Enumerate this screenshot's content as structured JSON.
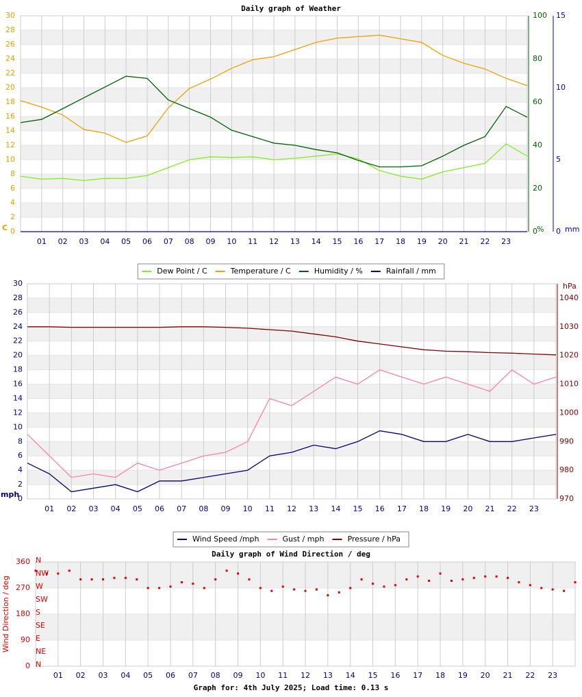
{
  "chart_data": [
    {
      "type": "line",
      "title": "Daily graph of Weather",
      "x": [
        0,
        1,
        2,
        3,
        4,
        5,
        6,
        7,
        8,
        9,
        10,
        11,
        12,
        13,
        14,
        15,
        16,
        17,
        18,
        19,
        20,
        21,
        22,
        23,
        24
      ],
      "xlim": [
        0,
        24
      ],
      "xticks": [
        {
          "value": 1,
          "label": "01"
        },
        {
          "value": 2,
          "label": "02"
        },
        {
          "value": 3,
          "label": "03"
        },
        {
          "value": 4,
          "label": "04"
        },
        {
          "value": 5,
          "label": "05"
        },
        {
          "value": 6,
          "label": "06"
        },
        {
          "value": 7,
          "label": "07"
        },
        {
          "value": 8,
          "label": "08"
        },
        {
          "value": 9,
          "label": "09"
        },
        {
          "value": 10,
          "label": "10"
        },
        {
          "value": 11,
          "label": "11"
        },
        {
          "value": 12,
          "label": "12"
        },
        {
          "value": 13,
          "label": "13"
        },
        {
          "value": 14,
          "label": "14"
        },
        {
          "value": 15,
          "label": "15"
        },
        {
          "value": 16,
          "label": "16"
        },
        {
          "value": 17,
          "label": "17"
        },
        {
          "value": 18,
          "label": "18"
        },
        {
          "value": 19,
          "label": "19"
        },
        {
          "value": 20,
          "label": "20"
        },
        {
          "value": 21,
          "label": "21"
        },
        {
          "value": 22,
          "label": "22"
        },
        {
          "value": 23,
          "label": "23"
        }
      ],
      "ylim": [
        0,
        30
      ],
      "yticks": [
        0,
        2,
        4,
        6,
        8,
        10,
        12,
        14,
        16,
        18,
        20,
        22,
        24,
        26,
        28,
        30
      ],
      "ylabel": "C",
      "ycolor": "#e8a000",
      "y2lim": [
        0,
        100
      ],
      "y2ticks": [
        0,
        20,
        40,
        60,
        80,
        100
      ],
      "y2label": "%",
      "y2color": "#006000",
      "y3lim": [
        0,
        15
      ],
      "y3ticks": [
        0,
        5,
        10,
        15
      ],
      "y3label": "mm",
      "y3color": "#0000c0",
      "grid": true,
      "series": [
        {
          "name": "Dew Point / C",
          "color": "#80ee20",
          "values": [
            7.7,
            7.3,
            7.4,
            7.1,
            7.4,
            7.4,
            7.8,
            8.9,
            10.0,
            10.4,
            10.3,
            10.4,
            10.0,
            10.2,
            10.5,
            10.8,
            10.1,
            8.5,
            7.7,
            7.3,
            8.3,
            8.9,
            9.5,
            12.2,
            10.5
          ]
        },
        {
          "name": "Temperature / C",
          "color": "#f0a000",
          "values": [
            18.2,
            17.3,
            16.2,
            14.2,
            13.7,
            12.4,
            13.3,
            17.2,
            19.9,
            21.2,
            22.7,
            23.9,
            24.3,
            25.3,
            26.3,
            26.9,
            27.1,
            27.3,
            26.8,
            26.3,
            24.5,
            23.4,
            22.6,
            21.3,
            20.3
          ]
        },
        {
          "name": "Humidity / %",
          "color": "#006000",
          "axis": "y2",
          "values": [
            50.5,
            52,
            57,
            62,
            67,
            72,
            71,
            61,
            57,
            53,
            47,
            44,
            41,
            40,
            38,
            36.5,
            33,
            30,
            30,
            30.5,
            35,
            40,
            44,
            58,
            53
          ]
        },
        {
          "name": "Rainfall / mm",
          "color": "#0000c0",
          "axis": "y3",
          "values": [
            0,
            0,
            0,
            0,
            0,
            0,
            0,
            0,
            0,
            0,
            0,
            0,
            0,
            0,
            0,
            0,
            0,
            0,
            0,
            0,
            0,
            0,
            0,
            0,
            0
          ]
        }
      ]
    },
    {
      "type": "line",
      "x": [
        0,
        1,
        2,
        3,
        4,
        5,
        6,
        7,
        8,
        9,
        10,
        11,
        12,
        13,
        14,
        15,
        16,
        17,
        18,
        19,
        20,
        21,
        22,
        23,
        24
      ],
      "xlim": [
        0,
        24
      ],
      "xticks": [
        {
          "value": 1,
          "label": "01"
        },
        {
          "value": 2,
          "label": "02"
        },
        {
          "value": 3,
          "label": "03"
        },
        {
          "value": 4,
          "label": "04"
        },
        {
          "value": 5,
          "label": "05"
        },
        {
          "value": 6,
          "label": "06"
        },
        {
          "value": 7,
          "label": "07"
        },
        {
          "value": 8,
          "label": "08"
        },
        {
          "value": 9,
          "label": "09"
        },
        {
          "value": 10,
          "label": "10"
        },
        {
          "value": 11,
          "label": "11"
        },
        {
          "value": 12,
          "label": "12"
        },
        {
          "value": 13,
          "label": "13"
        },
        {
          "value": 14,
          "label": "14"
        },
        {
          "value": 15,
          "label": "15"
        },
        {
          "value": 16,
          "label": "16"
        },
        {
          "value": 17,
          "label": "17"
        },
        {
          "value": 18,
          "label": "18"
        },
        {
          "value": 19,
          "label": "19"
        },
        {
          "value": 20,
          "label": "20"
        },
        {
          "value": 21,
          "label": "21"
        },
        {
          "value": 22,
          "label": "22"
        },
        {
          "value": 23,
          "label": "23"
        }
      ],
      "ylim": [
        0,
        30
      ],
      "yticks": [
        0,
        2,
        4,
        6,
        8,
        10,
        12,
        14,
        16,
        18,
        20,
        22,
        24,
        26,
        28,
        30
      ],
      "ylabel": "mph",
      "ycolor": "#000080",
      "y2lim": [
        970,
        1045
      ],
      "y2ticks": [
        970,
        980,
        990,
        1000,
        1010,
        1020,
        1030,
        1040
      ],
      "y2label": "hPa",
      "y2color": "#800000",
      "grid": true,
      "series": [
        {
          "name": "Wind Speed /mph",
          "color": "#000080",
          "values": [
            5,
            3.5,
            1,
            1.5,
            2,
            1,
            2.5,
            2.5,
            3,
            3.5,
            4,
            6,
            6.5,
            7.5,
            7,
            8,
            9.5,
            9,
            8,
            8,
            9,
            8,
            8,
            8.5,
            9
          ]
        },
        {
          "name": "Gust / mph",
          "color": "#ff80a0",
          "values": [
            9,
            6,
            3,
            3.5,
            3,
            5,
            4,
            5,
            6,
            6.5,
            8,
            14,
            13,
            15,
            17,
            16,
            18,
            17,
            16,
            17,
            16,
            15,
            18,
            16,
            17
          ]
        },
        {
          "name": "Pressure / hPa",
          "color": "#800000",
          "axis": "y2",
          "values": [
            1030,
            1030,
            1029.8,
            1029.8,
            1029.8,
            1029.8,
            1029.8,
            1030,
            1030,
            1029.8,
            1029.5,
            1029,
            1028.5,
            1027.5,
            1026.5,
            1025,
            1024,
            1023,
            1022,
            1021.5,
            1021.3,
            1021,
            1020.8,
            1020.5,
            1020.2
          ]
        }
      ]
    },
    {
      "type": "scatter",
      "title": "Daily graph of Wind Direction / deg",
      "x": [
        0,
        0.5,
        1,
        1.5,
        2,
        2.5,
        3,
        3.5,
        4,
        4.5,
        5,
        5.5,
        6,
        6.5,
        7,
        7.5,
        8,
        8.5,
        9,
        9.5,
        10,
        10.5,
        11,
        11.5,
        12,
        12.5,
        13,
        13.5,
        14,
        14.5,
        15,
        15.5,
        16,
        16.5,
        17,
        17.5,
        18,
        18.5,
        19,
        19.5,
        20,
        20.5,
        21,
        21.5,
        22,
        22.5,
        23,
        23.5,
        24
      ],
      "xlim": [
        0,
        24
      ],
      "xticks": [
        {
          "value": 1,
          "label": "01"
        },
        {
          "value": 2,
          "label": "02"
        },
        {
          "value": 3,
          "label": "03"
        },
        {
          "value": 4,
          "label": "04"
        },
        {
          "value": 5,
          "label": "05"
        },
        {
          "value": 6,
          "label": "06"
        },
        {
          "value": 7,
          "label": "07"
        },
        {
          "value": 8,
          "label": "08"
        },
        {
          "value": 9,
          "label": "09"
        },
        {
          "value": 10,
          "label": "10"
        },
        {
          "value": 11,
          "label": "11"
        },
        {
          "value": 12,
          "label": "12"
        },
        {
          "value": 13,
          "label": "13"
        },
        {
          "value": 14,
          "label": "14"
        },
        {
          "value": 15,
          "label": "15"
        },
        {
          "value": 16,
          "label": "16"
        },
        {
          "value": 17,
          "label": "17"
        },
        {
          "value": 18,
          "label": "18"
        },
        {
          "value": 19,
          "label": "19"
        },
        {
          "value": 20,
          "label": "20"
        },
        {
          "value": 21,
          "label": "21"
        },
        {
          "value": 22,
          "label": "22"
        },
        {
          "value": 23,
          "label": "23"
        }
      ],
      "ylim": [
        0,
        360
      ],
      "yticks": [
        0,
        90,
        180,
        270,
        360
      ],
      "ylabel": "Wind Direction / deg",
      "ycolor": "#e00000",
      "compass_ticks": [
        {
          "value": 0,
          "label": "N"
        },
        {
          "value": 45,
          "label": "NE"
        },
        {
          "value": 90,
          "label": "E"
        },
        {
          "value": 135,
          "label": "SE"
        },
        {
          "value": 180,
          "label": "S"
        },
        {
          "value": 225,
          "label": "SW"
        },
        {
          "value": 270,
          "label": "W"
        },
        {
          "value": 315,
          "label": "NW"
        },
        {
          "value": 360,
          "label": "N"
        }
      ],
      "grid": true,
      "series": [
        {
          "name": "Wind Direction",
          "color": "#e00000",
          "values": [
            330,
            320,
            320,
            330,
            300,
            300,
            300,
            305,
            305,
            300,
            270,
            270,
            275,
            290,
            285,
            270,
            300,
            330,
            320,
            300,
            270,
            260,
            275,
            265,
            260,
            265,
            245,
            255,
            270,
            300,
            285,
            275,
            280,
            300,
            310,
            295,
            320,
            295,
            300,
            305,
            310,
            310,
            305,
            290,
            280,
            270,
            265,
            260,
            290
          ]
        }
      ]
    }
  ],
  "footer": "Graph for: 4th July 2025; Load time: 0.13 s"
}
